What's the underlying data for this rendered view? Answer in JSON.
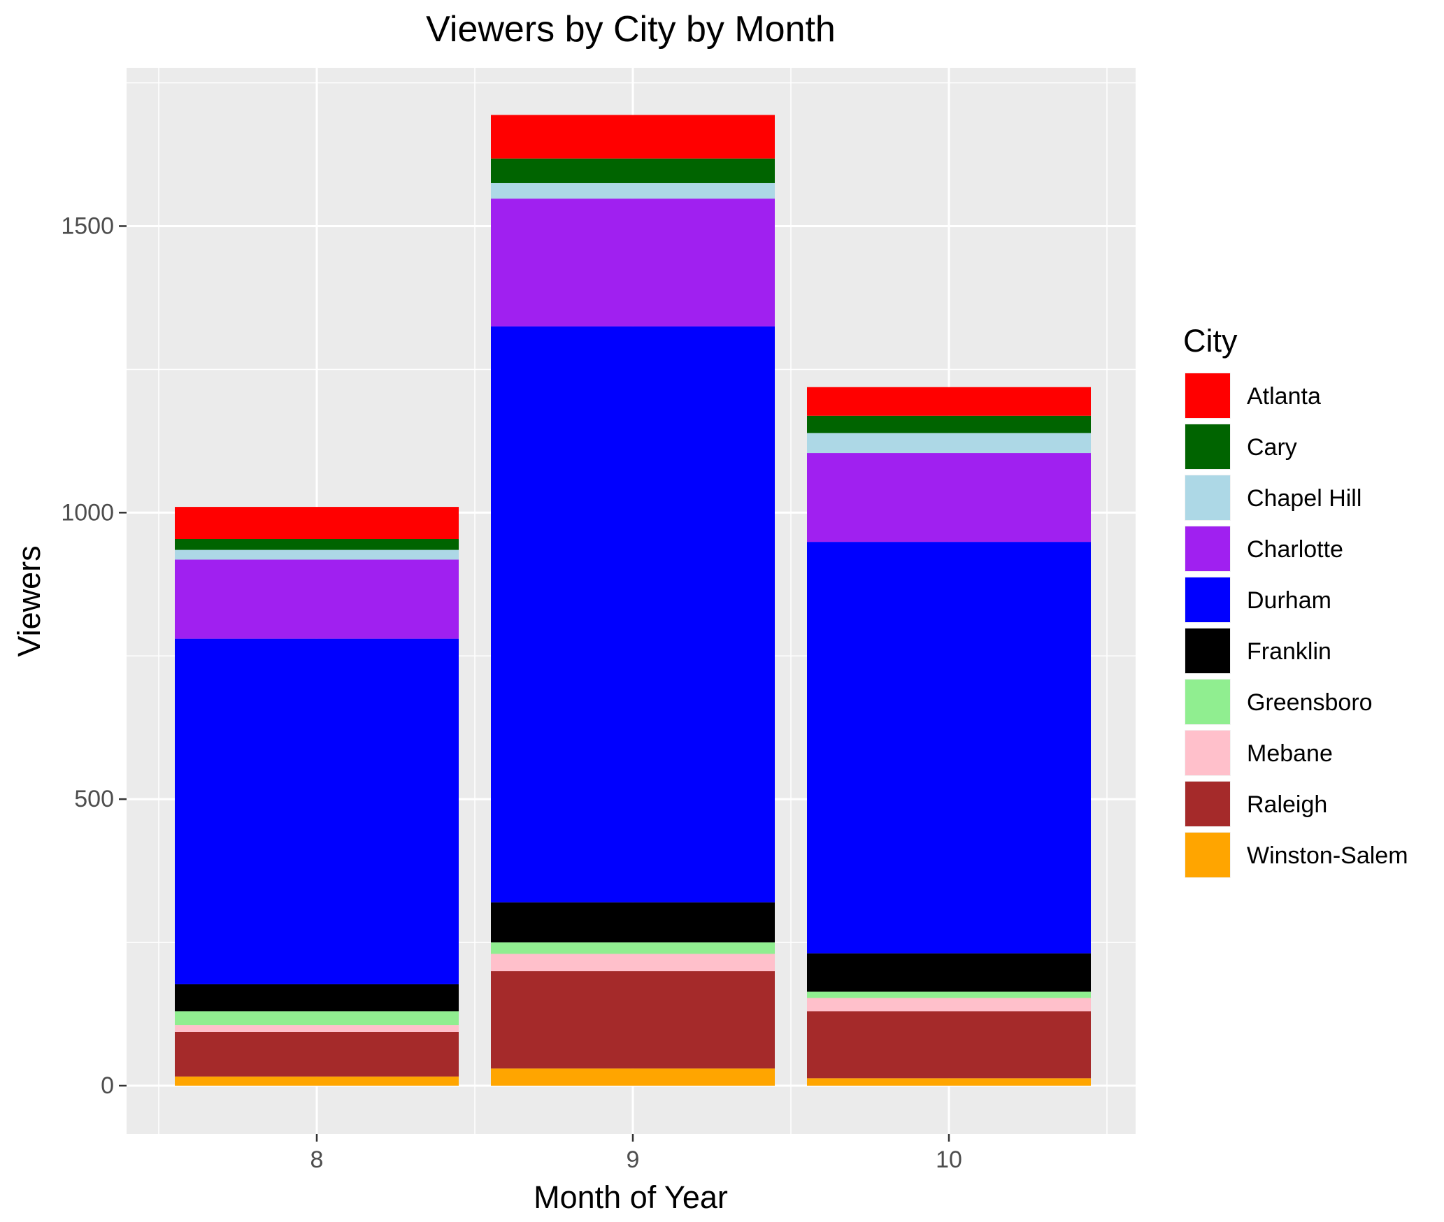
{
  "chart_data": {
    "type": "bar",
    "stacked": true,
    "title": "Viewers by City by Month",
    "xlabel": "Month of Year",
    "ylabel": "Viewers",
    "categories": [
      "8",
      "9",
      "10"
    ],
    "y_ticks": [
      0,
      500,
      1000,
      1500
    ],
    "ylim": [
      -70,
      1760
    ],
    "grid": true,
    "legend": {
      "title": "City",
      "position": "right"
    },
    "series": [
      {
        "name": "Winston-Salem",
        "color": "#FFA500",
        "values": [
          16,
          30,
          13
        ]
      },
      {
        "name": "Raleigh",
        "color": "#A52A2A",
        "values": [
          78,
          170,
          117
        ]
      },
      {
        "name": "Mebane",
        "color": "#FFC0CB",
        "values": [
          12,
          30,
          23
        ]
      },
      {
        "name": "Greensboro",
        "color": "#90EE90",
        "values": [
          24,
          20,
          11
        ]
      },
      {
        "name": "Franklin",
        "color": "#000000",
        "values": [
          47,
          70,
          67
        ]
      },
      {
        "name": "Durham",
        "color": "#0000FF",
        "values": [
          603,
          1005,
          718
        ]
      },
      {
        "name": "Charlotte",
        "color": "#A020F0",
        "values": [
          138,
          223,
          155
        ]
      },
      {
        "name": "Chapel Hill",
        "color": "#ADD8E6",
        "values": [
          17,
          27,
          35
        ]
      },
      {
        "name": "Cary",
        "color": "#006400",
        "values": [
          19,
          43,
          30
        ]
      },
      {
        "name": "Atlanta",
        "color": "#FF0000",
        "values": [
          56,
          76,
          50
        ]
      }
    ],
    "legend_order": [
      "Atlanta",
      "Cary",
      "Chapel Hill",
      "Charlotte",
      "Durham",
      "Franklin",
      "Greensboro",
      "Mebane",
      "Raleigh",
      "Winston-Salem"
    ]
  }
}
